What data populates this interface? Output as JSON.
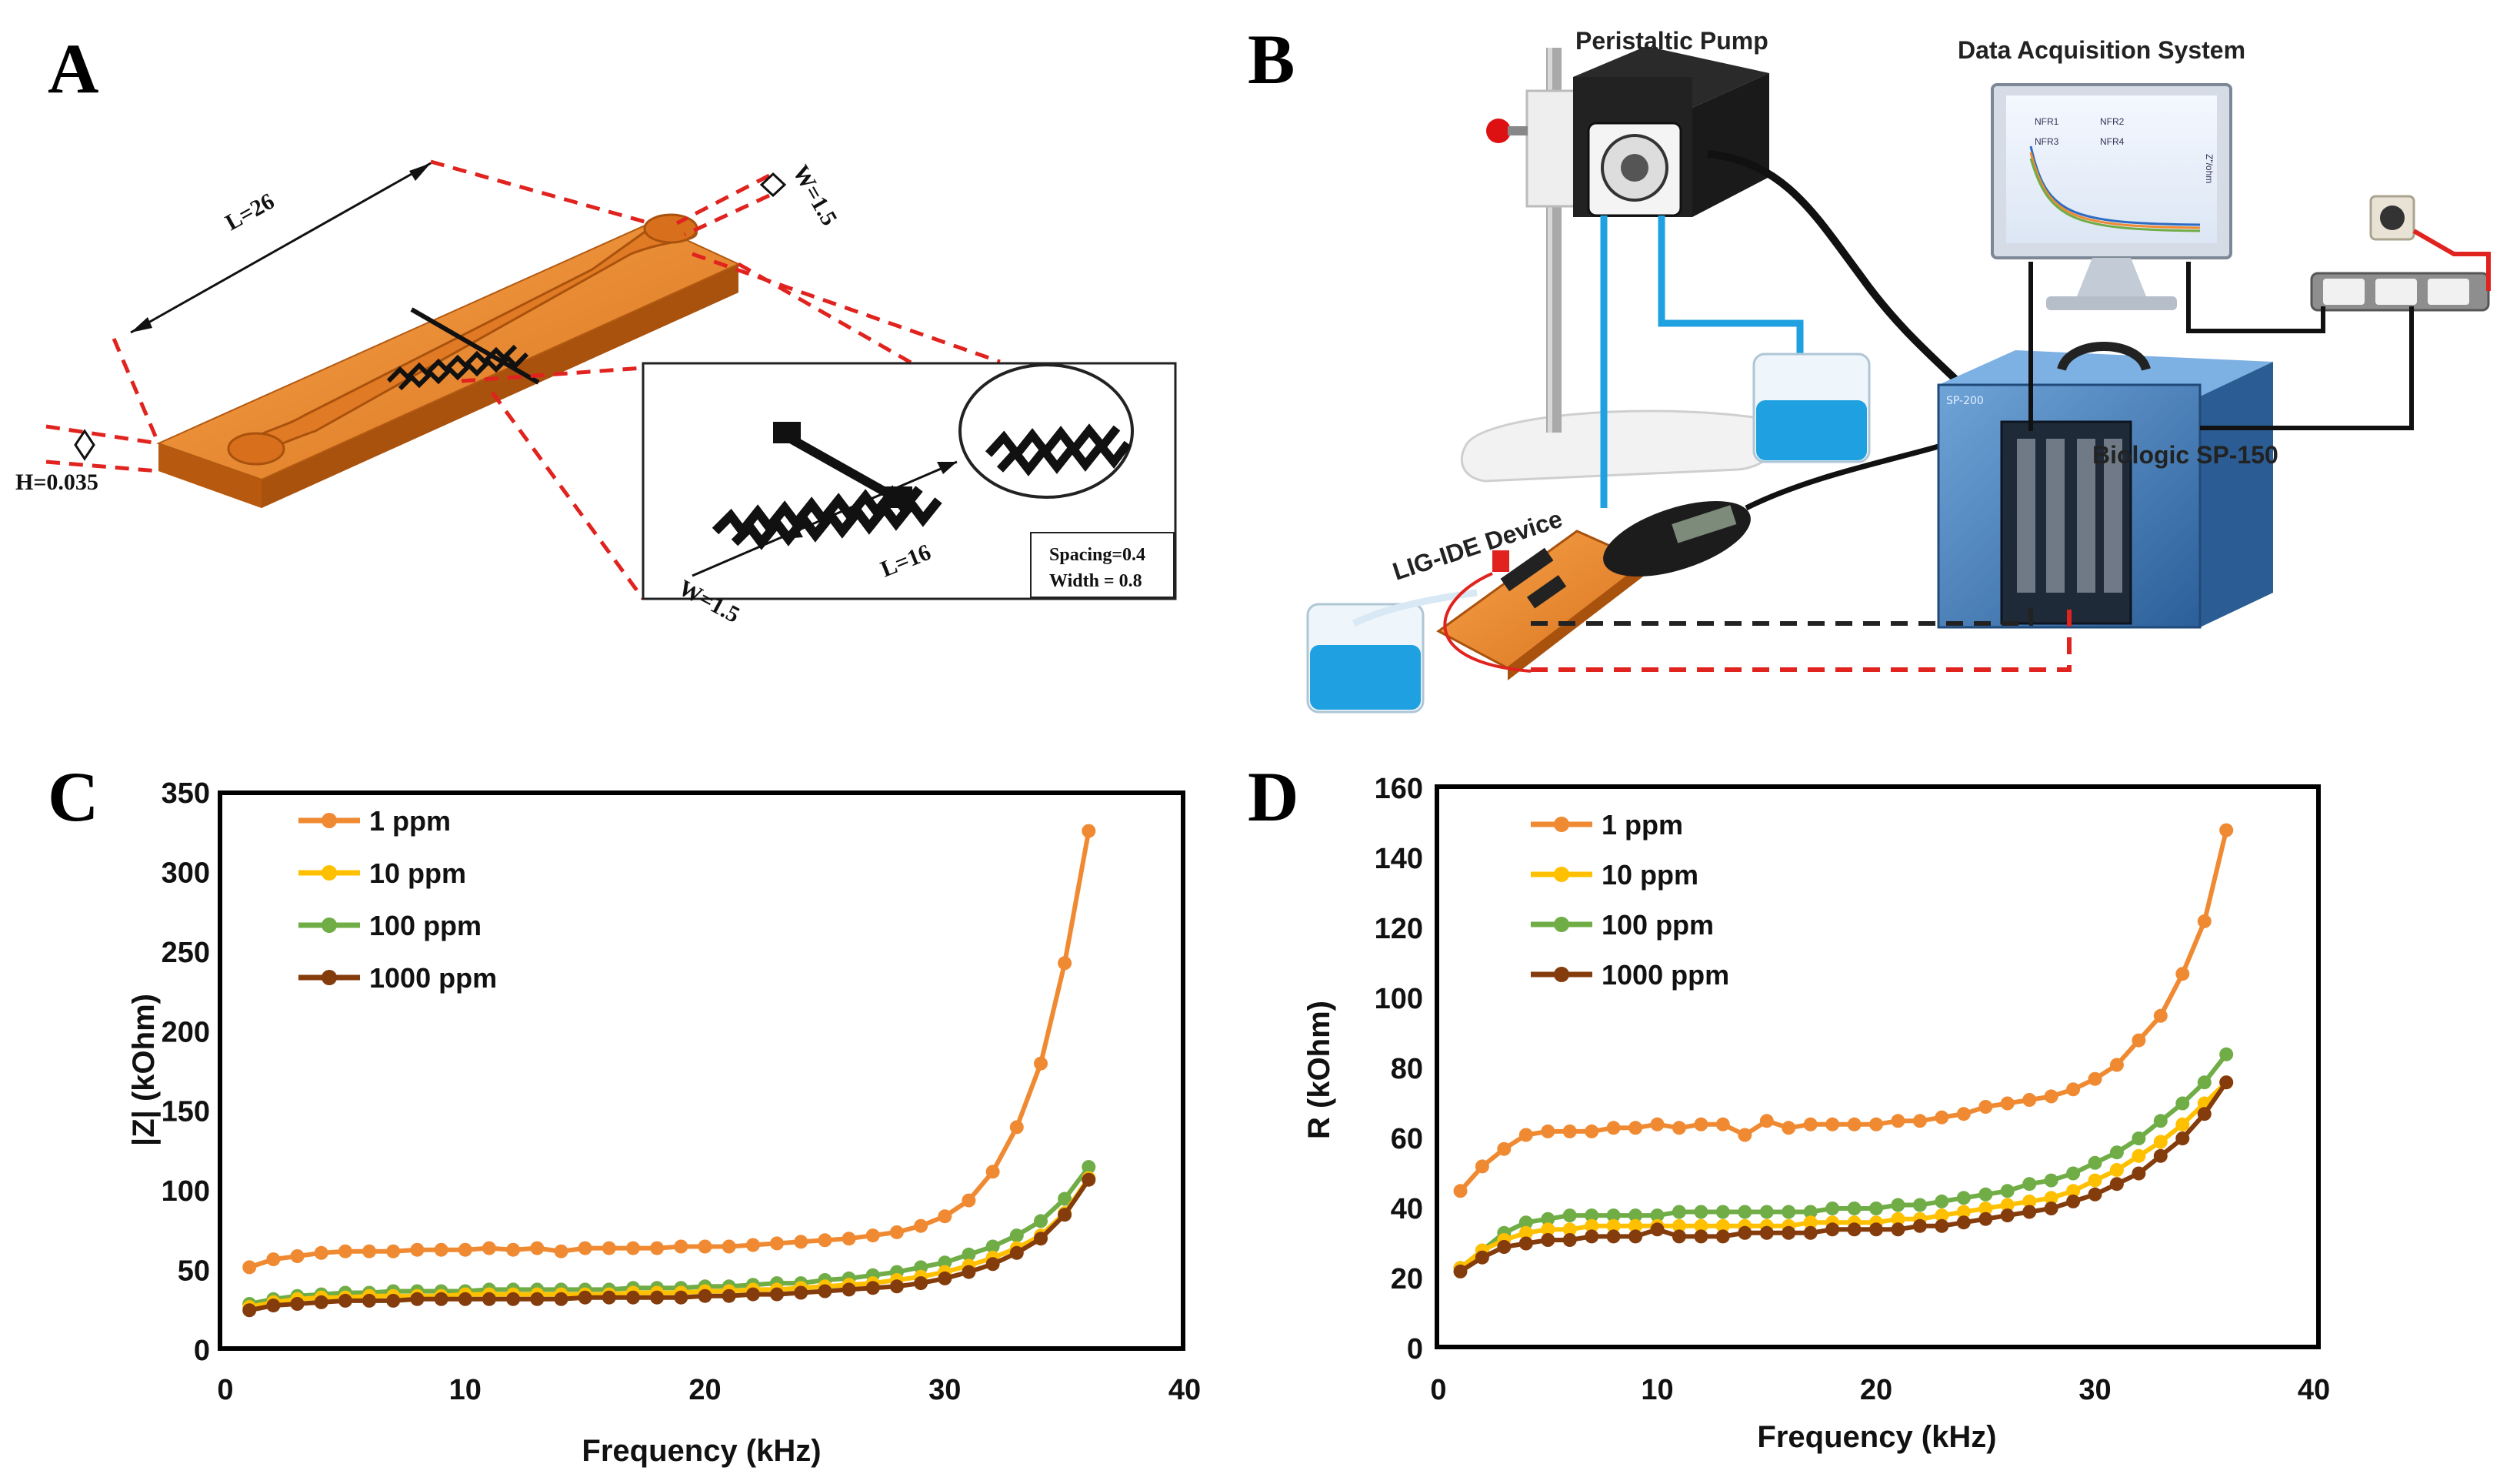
{
  "figure": {
    "panel_labels": [
      "A",
      "B",
      "C",
      "D"
    ],
    "panel_a": {
      "dim_length": "L=26",
      "dim_width": "W=1.5",
      "dim_height": "H=0.035",
      "inset_width": "W=1.5",
      "inset_length": "L=16",
      "spacing": "Spacing=0.4",
      "trace_width": "Width = 0.8"
    },
    "panel_b": {
      "pump": "Peristaltic Pump",
      "daq": "Data Acquisition System",
      "potentiostat": "Biologic SP-150",
      "device": "LIG-IDE Device",
      "model_tag": "SP-200",
      "monitor_axis": "Z\"/ohm",
      "monitor_legend": [
        "NFR1",
        "NFR2",
        "NFR3",
        "NFR4"
      ]
    }
  },
  "colors": {
    "s1": "#F08A32",
    "s10": "#FFC000",
    "s100": "#70AD47",
    "s1000": "#843C0C",
    "board": "#E8862F",
    "guide": "#E0231E",
    "water": "#1FA0E0"
  },
  "chart_data": [
    {
      "type": "line",
      "panel": "C",
      "title": "",
      "xlabel": "Frequency  (kHz)",
      "ylabel": "|Z| (kOhm)",
      "xlim": [
        0,
        40
      ],
      "ylim": [
        0,
        350
      ],
      "xticks": [
        0,
        10,
        20,
        30,
        40
      ],
      "yticks": [
        0,
        50,
        100,
        150,
        200,
        250,
        300,
        350
      ],
      "x": [
        1,
        2,
        3,
        4,
        5,
        6,
        7,
        8,
        9,
        10,
        11,
        12,
        13,
        14,
        15,
        16,
        17,
        18,
        19,
        20,
        21,
        22,
        23,
        24,
        25,
        26,
        27,
        28,
        29,
        30,
        31,
        32,
        33,
        34,
        35,
        36
      ],
      "series": [
        {
          "name": "1 ppm",
          "color": "#F08A32",
          "values": [
            52,
            57,
            59,
            61,
            62,
            62,
            62,
            63,
            63,
            63,
            64,
            63,
            64,
            62,
            64,
            64,
            64,
            64,
            65,
            65,
            65,
            66,
            67,
            68,
            69,
            70,
            72,
            74,
            78,
            84,
            94,
            112,
            140,
            180,
            243,
            326
          ]
        },
        {
          "name": "10 ppm",
          "color": "#FFC000",
          "values": [
            27,
            30,
            32,
            33,
            33,
            34,
            34,
            34,
            34,
            35,
            35,
            35,
            35,
            35,
            35,
            35,
            36,
            36,
            36,
            37,
            37,
            38,
            38,
            39,
            40,
            41,
            42,
            44,
            46,
            49,
            53,
            58,
            64,
            72,
            86,
            108
          ]
        },
        {
          "name": "100 ppm",
          "color": "#70AD47",
          "values": [
            29,
            32,
            34,
            35,
            36,
            36,
            37,
            37,
            37,
            37,
            38,
            38,
            38,
            38,
            38,
            38,
            39,
            39,
            39,
            40,
            40,
            41,
            42,
            42,
            44,
            45,
            47,
            49,
            52,
            55,
            60,
            65,
            72,
            81,
            95,
            115
          ]
        },
        {
          "name": "1000 ppm",
          "color": "#843C0C",
          "values": [
            25,
            28,
            29,
            30,
            31,
            31,
            31,
            32,
            32,
            32,
            32,
            32,
            32,
            32,
            33,
            33,
            33,
            33,
            33,
            34,
            34,
            35,
            35,
            36,
            37,
            38,
            39,
            40,
            42,
            45,
            49,
            54,
            61,
            70,
            85,
            107
          ]
        }
      ],
      "legend": "top-left"
    },
    {
      "type": "line",
      "panel": "D",
      "title": "",
      "xlabel": "Frequency (kHz)",
      "ylabel": "R (kOhm)",
      "xlim": [
        0,
        40
      ],
      "ylim": [
        0,
        160
      ],
      "xticks": [
        0,
        10,
        20,
        30,
        40
      ],
      "yticks": [
        0,
        20,
        40,
        60,
        80,
        100,
        120,
        140,
        160
      ],
      "x": [
        1,
        2,
        3,
        4,
        5,
        6,
        7,
        8,
        9,
        10,
        11,
        12,
        13,
        14,
        15,
        16,
        17,
        18,
        19,
        20,
        21,
        22,
        23,
        24,
        25,
        26,
        27,
        28,
        29,
        30,
        31,
        32,
        33,
        34,
        35,
        36
      ],
      "series": [
        {
          "name": "1 ppm",
          "color": "#F08A32",
          "values": [
            45,
            52,
            57,
            61,
            62,
            62,
            62,
            63,
            63,
            64,
            63,
            64,
            64,
            61,
            65,
            63,
            64,
            64,
            64,
            64,
            65,
            65,
            66,
            67,
            69,
            70,
            71,
            72,
            74,
            77,
            81,
            88,
            95,
            107,
            122,
            148
          ]
        },
        {
          "name": "10 ppm",
          "color": "#FFC000",
          "values": [
            23,
            28,
            31,
            33,
            34,
            34,
            35,
            35,
            35,
            35,
            35,
            35,
            35,
            35,
            35,
            35,
            36,
            36,
            36,
            36,
            37,
            37,
            38,
            39,
            40,
            41,
            42,
            43,
            45,
            48,
            51,
            55,
            59,
            64,
            70,
            76
          ]
        },
        {
          "name": "100 ppm",
          "color": "#70AD47",
          "values": [
            23,
            28,
            33,
            36,
            37,
            38,
            38,
            38,
            38,
            38,
            39,
            39,
            39,
            39,
            39,
            39,
            39,
            40,
            40,
            40,
            41,
            41,
            42,
            43,
            44,
            45,
            47,
            48,
            50,
            53,
            56,
            60,
            65,
            70,
            76,
            84
          ]
        },
        {
          "name": "1000 ppm",
          "color": "#843C0C",
          "values": [
            22,
            26,
            29,
            30,
            31,
            31,
            32,
            32,
            32,
            34,
            32,
            32,
            32,
            33,
            33,
            33,
            33,
            34,
            34,
            34,
            34,
            35,
            35,
            36,
            37,
            38,
            39,
            40,
            42,
            44,
            47,
            50,
            55,
            60,
            67,
            76
          ]
        }
      ],
      "legend": "top-left"
    }
  ]
}
